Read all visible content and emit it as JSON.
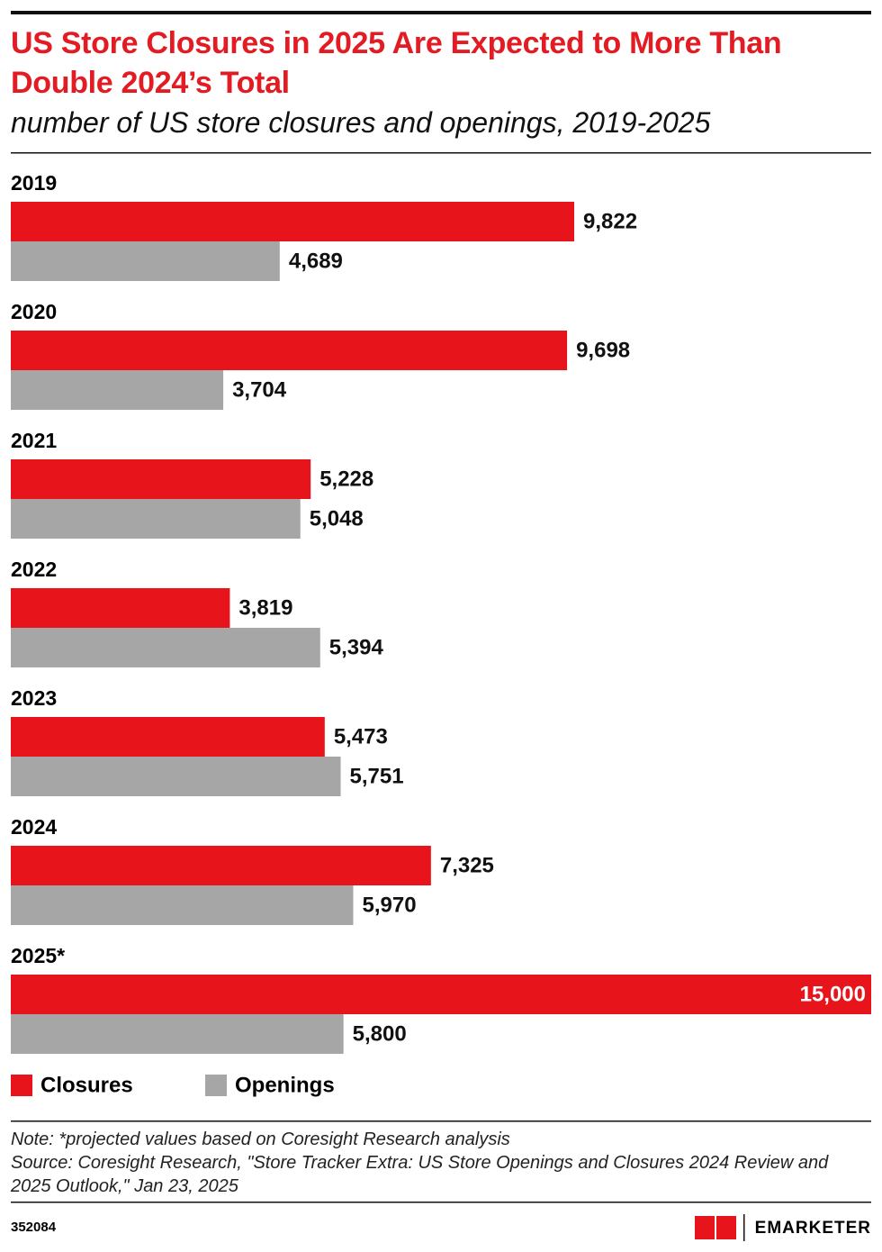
{
  "chart_data": {
    "type": "bar",
    "orientation": "horizontal",
    "title": "US Store Closures in 2025 Are Expected to More Than Double 2024’s Total",
    "subtitle": "number of US store closures and openings, 2019-2025",
    "categories": [
      "2019",
      "2020",
      "2021",
      "2022",
      "2023",
      "2024",
      "2025*"
    ],
    "series": [
      {
        "name": "Closures",
        "color": "#e8141c",
        "values": [
          9822,
          9698,
          5228,
          3819,
          5473,
          7325,
          15000
        ],
        "value_labels": [
          "9,822",
          "9,698",
          "5,228",
          "3,819",
          "5,473",
          "7,325",
          "15,000"
        ]
      },
      {
        "name": "Openings",
        "color": "#a6a6a6",
        "values": [
          4689,
          3704,
          5048,
          5394,
          5751,
          5970,
          5800
        ],
        "value_labels": [
          "4,689",
          "3,704",
          "5,048",
          "5,394",
          "5,751",
          "5,970",
          "5,800"
        ]
      }
    ],
    "note": "Note: *projected values based on Coresight Research analysis",
    "source": "Source: Coresight Research, \"Store Tracker Extra: US Store Openings and Closures 2024 Review and 2025 Outlook,\" Jan 23, 2025",
    "chart_id": "352084",
    "brand": "EMARKETER"
  }
}
